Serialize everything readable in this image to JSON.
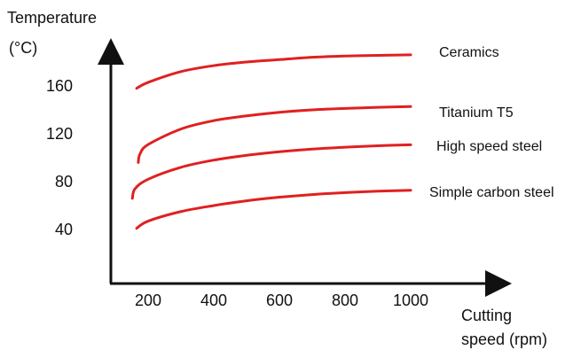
{
  "chart_data": {
    "type": "line",
    "ylabel_line1": "Temperature",
    "ylabel_line2": "(°C)",
    "xlabel_line1": "Cutting",
    "xlabel_line2": "speed (rpm)",
    "x_ticks": [
      "200",
      "400",
      "600",
      "800",
      "1000"
    ],
    "y_ticks": [
      "40",
      "80",
      "120",
      "160"
    ],
    "xlim": [
      120,
      1250
    ],
    "ylim": [
      5,
      215
    ],
    "grid": false,
    "legend": "inline labels at right end of each curve",
    "series": [
      {
        "name": "Ceramics",
        "color": "#e02020",
        "x": [
          165,
          200,
          300,
          400,
          500,
          600,
          700,
          800,
          900,
          1000
        ],
        "y": [
          158,
          163,
          172,
          177,
          180,
          182,
          184,
          185,
          185.6,
          186
        ]
      },
      {
        "name": "Titanium T5",
        "color": "#e02020",
        "x": [
          170,
          175,
          200,
          300,
          400,
          500,
          600,
          700,
          800,
          900,
          1000
        ],
        "y": [
          96,
          103,
          111,
          124,
          131,
          135,
          138,
          140,
          141.2,
          142.1,
          142.8
        ]
      },
      {
        "name": "High speed steel",
        "color": "#e02020",
        "x": [
          152,
          160,
          200,
          300,
          400,
          500,
          600,
          700,
          800,
          900,
          1000
        ],
        "y": [
          66,
          74,
          82,
          92,
          98,
          102,
          105,
          107.2,
          108.8,
          110,
          110.8
        ]
      },
      {
        "name": "Simple carbon steel",
        "color": "#e02020",
        "x": [
          165,
          200,
          300,
          400,
          500,
          600,
          700,
          800,
          900,
          1000
        ],
        "y": [
          41,
          47,
          55,
          60,
          64,
          67,
          69.2,
          70.8,
          72,
          72.8
        ]
      }
    ]
  }
}
